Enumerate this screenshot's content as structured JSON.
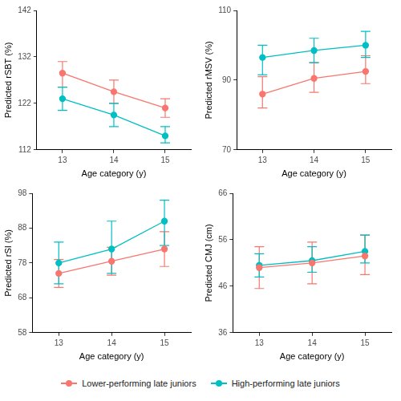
{
  "chart_data": [
    {
      "type": "line",
      "x_label": "Age category (y)",
      "y_label": "Predicted rSBT (%)",
      "categories": [
        "13",
        "14",
        "15"
      ],
      "series": [
        {
          "name": "Lower-performing late juniors",
          "color": "#F8766D",
          "marker": "circle",
          "values": [
            128.5,
            124.5,
            121
          ],
          "error_low": [
            125.5,
            122,
            119
          ],
          "error_high": [
            131,
            127,
            123
          ]
        },
        {
          "name": "High-performing late juniors",
          "color": "#00BFC4",
          "marker": "circle",
          "values": [
            123,
            119.5,
            115
          ],
          "error_low": [
            120.5,
            117,
            113.5
          ],
          "error_high": [
            125.5,
            122,
            117
          ]
        }
      ],
      "ylim": [
        112,
        142
      ],
      "yticks": [
        112,
        122,
        132,
        142
      ],
      "grid": false,
      "legend": "bottom"
    },
    {
      "type": "line",
      "x_label": "Age category (y)",
      "y_label": "Predicted rMSV (%)",
      "categories": [
        "13",
        "14",
        "15"
      ],
      "series": [
        {
          "name": "Lower-performing late juniors",
          "color": "#F8766D",
          "marker": "circle",
          "values": [
            86,
            90.5,
            92.5
          ],
          "error_low": [
            82,
            86.5,
            89
          ],
          "error_high": [
            91,
            95,
            97
          ]
        },
        {
          "name": "High-performing late juniors",
          "color": "#00BFC4",
          "marker": "circle",
          "values": [
            96.5,
            98.5,
            100
          ],
          "error_low": [
            91.5,
            95,
            96.5
          ],
          "error_high": [
            100,
            102,
            104
          ]
        }
      ],
      "ylim": [
        70,
        110
      ],
      "yticks": [
        70,
        90,
        110
      ],
      "grid": false,
      "legend": "bottom"
    },
    {
      "type": "line",
      "x_label": "Age category (y)",
      "y_label": "Predicted rSI (%)",
      "categories": [
        "13",
        "14",
        "15"
      ],
      "series": [
        {
          "name": "Lower-performing late juniors",
          "color": "#F8766D",
          "marker": "circle",
          "values": [
            75,
            78.5,
            82
          ],
          "error_low": [
            71,
            74.5,
            77
          ],
          "error_high": [
            79,
            82.5,
            87
          ]
        },
        {
          "name": "High-performing late juniors",
          "color": "#00BFC4",
          "marker": "circle",
          "values": [
            78,
            82,
            90
          ],
          "error_low": [
            72,
            75,
            83
          ],
          "error_high": [
            84,
            90,
            96
          ]
        }
      ],
      "ylim": [
        58,
        98
      ],
      "yticks": [
        58,
        68,
        78,
        88,
        98
      ],
      "grid": false,
      "legend": "bottom"
    },
    {
      "type": "line",
      "x_label": "Age category (y)",
      "y_label": "Predicted CMJ (cm)",
      "categories": [
        "13",
        "14",
        "15"
      ],
      "series": [
        {
          "name": "Lower-performing late juniors",
          "color": "#F8766D",
          "marker": "circle",
          "values": [
            50,
            51,
            52.5
          ],
          "error_low": [
            45.5,
            46.5,
            48.5
          ],
          "error_high": [
            54.5,
            55.5,
            57
          ]
        },
        {
          "name": "High-performing late juniors",
          "color": "#00BFC4",
          "marker": "circle",
          "values": [
            50.5,
            51.5,
            53.5
          ],
          "error_low": [
            48,
            49,
            51
          ],
          "error_high": [
            53,
            54.5,
            57
          ]
        }
      ],
      "ylim": [
        36,
        66
      ],
      "yticks": [
        36,
        46,
        56,
        66
      ],
      "grid": false,
      "legend": "bottom"
    }
  ]
}
